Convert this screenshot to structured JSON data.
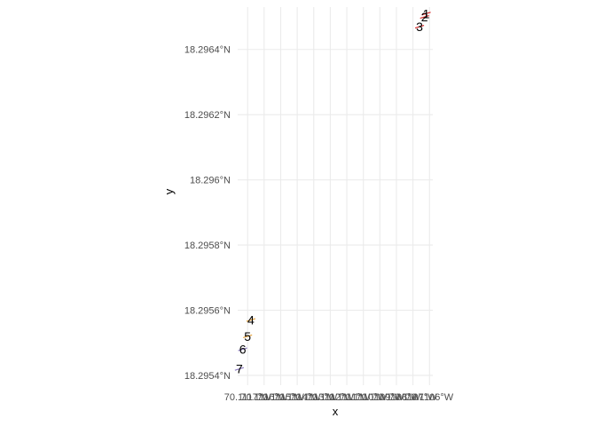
{
  "chart_data": {
    "type": "scatter",
    "title": "",
    "xlabel": "x",
    "ylabel": "y",
    "grid": true,
    "legend": "none",
    "xlim": [
      -70.11176,
      -70.11058
    ],
    "ylim": [
      18.29537,
      18.29653
    ],
    "x_ticks": [
      {
        "value": -70.1117,
        "label": "70.1117°W"
      },
      {
        "value": -70.1116,
        "label": "70.1116°W"
      },
      {
        "value": -70.1115,
        "label": "70.1115°W"
      },
      {
        "value": -70.1114,
        "label": "70.1114°W"
      },
      {
        "value": -70.1113,
        "label": "70.1113°W"
      },
      {
        "value": -70.1112,
        "label": "70.1112°W"
      },
      {
        "value": -70.1111,
        "label": "70.1111°W"
      },
      {
        "value": -70.111,
        "label": "70.1110°W"
      },
      {
        "value": -70.1109,
        "label": "70.1109°W"
      },
      {
        "value": -70.1108,
        "label": "70.1108°W"
      },
      {
        "value": -70.1107,
        "label": "70.1107°W"
      },
      {
        "value": -70.1106,
        "label": "70.1106°W"
      }
    ],
    "y_ticks": [
      {
        "value": 18.2954,
        "label": "18.2954°N"
      },
      {
        "value": 18.2956,
        "label": "18.2956°N"
      },
      {
        "value": 18.2958,
        "label": "18.2958°N"
      },
      {
        "value": 18.296,
        "label": "18.296°N"
      },
      {
        "value": 18.2962,
        "label": "18.2962°N"
      },
      {
        "value": 18.2964,
        "label": "18.2964°N"
      }
    ],
    "points": [
      {
        "label": "1",
        "x": -70.11062,
        "y": 18.29651,
        "color": "#d62728"
      },
      {
        "label": "2",
        "x": -70.11063,
        "y": 18.2965,
        "color": "#d62728"
      },
      {
        "label": "3",
        "x": -70.11066,
        "y": 18.29647,
        "color": "#d62728"
      },
      {
        "label": "4",
        "x": -70.11168,
        "y": 18.29557,
        "color": "#e6a23c"
      },
      {
        "label": "5",
        "x": -70.1117,
        "y": 18.29552,
        "color": "#e6a23c"
      },
      {
        "label": "6",
        "x": -70.11173,
        "y": 18.29548,
        "color": "#8e7cc3"
      },
      {
        "label": "7",
        "x": -70.11175,
        "y": 18.29542,
        "color": "#8e7cc3"
      }
    ]
  }
}
